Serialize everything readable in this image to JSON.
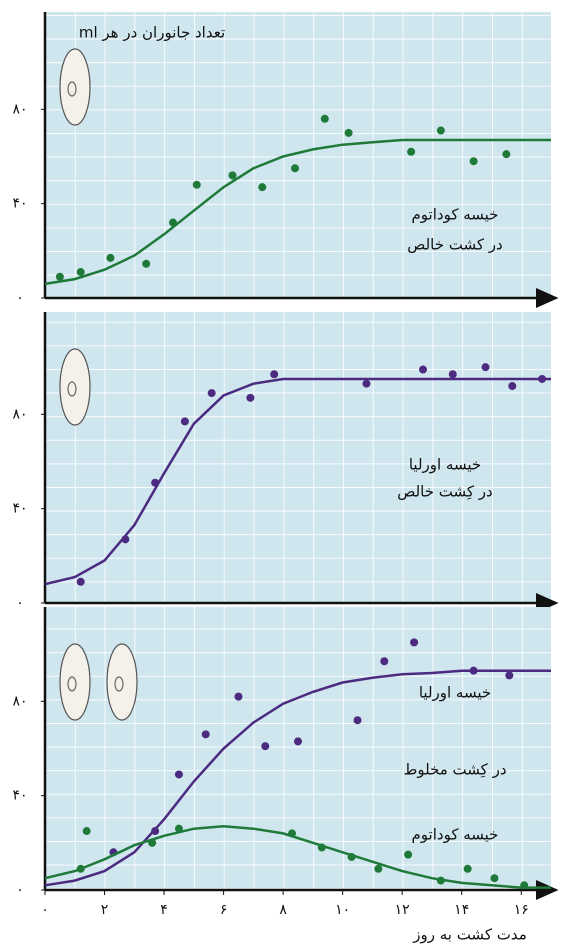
{
  "chart_data": [
    {
      "type": "scatter",
      "ylabel": "تعداد جانوران در هر ml",
      "annotations": [
        "خیسه کوداتوم",
        "در کشت خالص"
      ],
      "xlim": [
        0,
        17
      ],
      "ylim": [
        0,
        120
      ],
      "yticks": [
        {
          "value": 0,
          "label": "۰"
        },
        {
          "value": 40,
          "label": "۴۰"
        },
        {
          "value": 80,
          "label": "۸۰"
        }
      ],
      "series": [
        {
          "color": "#1f7a3a",
          "x": [
            0.5,
            1.2,
            2.2,
            3.4,
            4.3,
            5.1,
            6.3,
            7.3,
            8.4,
            9.4,
            10.2,
            12.3,
            13.3,
            14.4,
            15.5
          ],
          "values": [
            9,
            11,
            17,
            14.5,
            32,
            48,
            52,
            47,
            55,
            76,
            70,
            62,
            71,
            58,
            61
          ],
          "curve_x": [
            0,
            1,
            2,
            3,
            4,
            5,
            6,
            7,
            8,
            9,
            10,
            11,
            12,
            13,
            14,
            15,
            16,
            17
          ],
          "curve_values": [
            6,
            8,
            12,
            18,
            27,
            37,
            47,
            55,
            60,
            63,
            65,
            66,
            67,
            67,
            67,
            67,
            67,
            67
          ]
        }
      ]
    },
    {
      "type": "scatter",
      "annotations": [
        "خیسه اورلیا",
        "در کِشت خالص"
      ],
      "xlim": [
        0,
        17
      ],
      "ylim": [
        0,
        120
      ],
      "yticks": [
        {
          "value": 0,
          "label": "۰"
        },
        {
          "value": 40,
          "label": "۴۰"
        },
        {
          "value": 80,
          "label": "۸۰"
        }
      ],
      "series": [
        {
          "color": "#4b2a80",
          "x": [
            1.2,
            2.7,
            3.7,
            4.7,
            5.6,
            6.9,
            7.7,
            10.8,
            12.7,
            13.7,
            14.8,
            15.7,
            16.7
          ],
          "values": [
            9,
            27,
            51,
            77,
            89,
            87,
            97,
            93,
            99,
            97,
            100,
            92,
            95
          ],
          "curve_x": [
            0,
            1,
            2,
            3,
            4,
            5,
            6,
            7,
            8,
            9,
            10,
            11,
            12,
            13,
            14,
            15,
            16,
            17
          ],
          "curve_values": [
            8,
            11,
            18,
            33,
            55,
            76,
            88,
            93,
            95,
            95,
            95,
            95,
            95,
            95,
            95,
            95,
            95,
            95
          ]
        }
      ]
    },
    {
      "type": "scatter",
      "xlabel": "مدت کشت به روز",
      "annotations": [
        "خیسه اورلیا",
        "در کِشت مخلوط",
        "خیسه کوداتوم"
      ],
      "xlim": [
        0,
        17
      ],
      "ylim": [
        0,
        120
      ],
      "yticks": [
        {
          "value": 0,
          "label": "۰"
        },
        {
          "value": 40,
          "label": "۴۰"
        },
        {
          "value": 80,
          "label": "۸۰"
        }
      ],
      "xticks": [
        {
          "value": 0,
          "label": "۰"
        },
        {
          "value": 2,
          "label": "۲"
        },
        {
          "value": 4,
          "label": "۴"
        },
        {
          "value": 6,
          "label": "۶"
        },
        {
          "value": 8,
          "label": "۸"
        },
        {
          "value": 10,
          "label": "۱۰"
        },
        {
          "value": 12,
          "label": "۱۲"
        },
        {
          "value": 14,
          "label": "۱۴"
        },
        {
          "value": 16,
          "label": "۱۶"
        }
      ],
      "series": [
        {
          "color": "#4b2a80",
          "x": [
            2.3,
            3.7,
            4.5,
            5.4,
            6.5,
            7.4,
            8.5,
            10.5,
            11.4,
            12.4,
            14.4,
            15.6
          ],
          "values": [
            16,
            25,
            49,
            66,
            82,
            61,
            63,
            72,
            97,
            105,
            93,
            91
          ],
          "curve_x": [
            0,
            1,
            2,
            3,
            4,
            5,
            6,
            7,
            8,
            9,
            10,
            11,
            12,
            13,
            14,
            15,
            16,
            17
          ],
          "curve_values": [
            2,
            4,
            8,
            16,
            30,
            46,
            60,
            71,
            79,
            84,
            88,
            90,
            91.5,
            92,
            93,
            93,
            93,
            93
          ]
        },
        {
          "color": "#1f7a3a",
          "x": [
            1.2,
            1.4,
            3.6,
            4.5,
            8.3,
            9.3,
            10.3,
            11.2,
            12.2,
            13.3,
            14.2,
            15.1,
            16.1
          ],
          "values": [
            9,
            25,
            20,
            26,
            24,
            18,
            14,
            9,
            15,
            4,
            9,
            5,
            2
          ],
          "curve_x": [
            0,
            1,
            2,
            3,
            4,
            5,
            6,
            7,
            8,
            9,
            10,
            11,
            12,
            13,
            14,
            15,
            16,
            17
          ],
          "curve_values": [
            5,
            8,
            13,
            19,
            23,
            26,
            27,
            26,
            24,
            20,
            16,
            12,
            8,
            5,
            3,
            2,
            1,
            1
          ]
        }
      ]
    }
  ]
}
